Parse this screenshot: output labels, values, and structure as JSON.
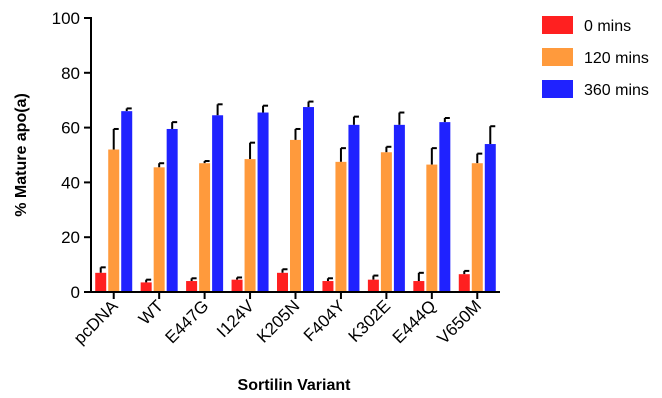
{
  "chart_data": {
    "type": "bar",
    "title": "",
    "xlabel": "Sortilin Variant",
    "ylabel": "% Mature apo(a)",
    "ylim": [
      0,
      100
    ],
    "yticks": [
      "0",
      "20",
      "40",
      "60",
      "80",
      "100"
    ],
    "grid": false,
    "legend_position": "top-right",
    "categories": [
      "pcDNA",
      "WT",
      "E447G",
      "I124V",
      "K205N",
      "F404Y",
      "K302E",
      "E444Q",
      "V650M"
    ],
    "series": [
      {
        "name": "0 mins",
        "color": "#ff2020",
        "values": [
          7,
          3.5,
          4,
          4.5,
          7,
          4,
          4.5,
          4,
          6.5
        ],
        "errors": [
          2,
          1,
          1,
          0.8,
          1.3,
          1,
          1.5,
          3,
          1.2
        ]
      },
      {
        "name": "120 mins",
        "color": "#ff9a3c",
        "values": [
          52,
          45.5,
          47,
          48.5,
          55.5,
          47.5,
          51,
          46.5,
          47
        ],
        "errors": [
          7.5,
          1.5,
          0.8,
          6,
          4,
          5,
          2,
          6,
          3.5
        ]
      },
      {
        "name": "360 mins",
        "color": "#1f22ff",
        "values": [
          66,
          59.5,
          64.5,
          65.5,
          67.5,
          61,
          61,
          62,
          54
        ],
        "errors": [
          1,
          2.5,
          4,
          2.5,
          2,
          3,
          4.5,
          1.5,
          6.5
        ]
      }
    ]
  }
}
